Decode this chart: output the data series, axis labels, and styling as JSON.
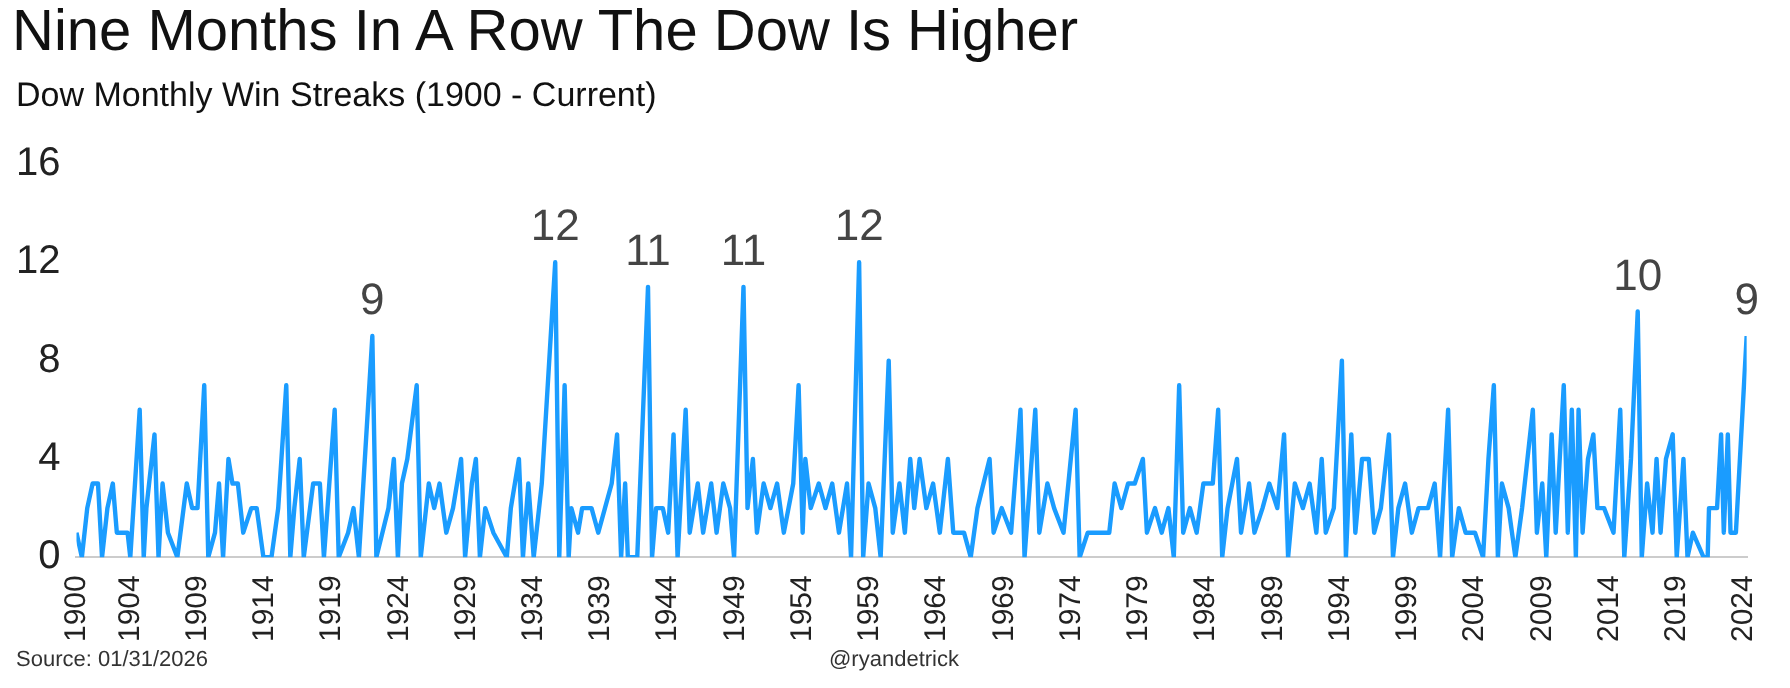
{
  "chart_data": {
    "type": "line",
    "title": "Nine Months In A Row The Dow Is Higher",
    "subtitle": "Dow Monthly Win Streaks (1900 - Current)",
    "xlim": [
      1900,
      2024.2
    ],
    "xticks": [
      1900,
      1904,
      1909,
      1914,
      1919,
      1924,
      1929,
      1934,
      1939,
      1944,
      1949,
      1954,
      1959,
      1964,
      1969,
      1974,
      1979,
      1984,
      1989,
      1994,
      1999,
      2004,
      2009,
      2014,
      2019,
      2024
    ],
    "ylim": [
      0,
      16
    ],
    "yticks": [
      0,
      4,
      8,
      12,
      16
    ],
    "grid": false,
    "legend": false,
    "marker": "none",
    "line_style": "solid",
    "series": [
      {
        "color": "#1a9cff",
        "x": [
          1900.0,
          1900.4,
          1900.8,
          1901.2,
          1901.6,
          1901.9,
          1902.3,
          1902.7,
          1903,
          1903.8,
          1904.0,
          1904.7,
          1905.0,
          1905.2,
          1905.8,
          1906.1,
          1906.4,
          1906.8,
          1907.5,
          1908.2,
          1908.6,
          1909.0,
          1909.5,
          1909.8,
          1910.3,
          1910.6,
          1910.9,
          1911.3,
          1911.6,
          1912,
          1912.4,
          1913,
          1913.4,
          1913.9,
          1914.5,
          1915.0,
          1915.6,
          1915.9,
          1916.2,
          1916.6,
          1916.9,
          1917.6,
          1918.1,
          1918.4,
          1919.2,
          1919.5,
          1920.2,
          1920.6,
          1921.0,
          1922.0,
          1922.3,
          1923.2,
          1923.6,
          1923.9,
          1924.2,
          1924.6,
          1925.3,
          1925.6,
          1926.2,
          1926.6,
          1927,
          1927.5,
          1928.0,
          1928.6,
          1928.9,
          1929.4,
          1929.7,
          1930,
          1930.4,
          1931,
          1932,
          1932.3,
          1932.9,
          1933.2,
          1933.6,
          1934.0,
          1934.6,
          1935.6,
          1935.9,
          1936.3,
          1936.6,
          1936.8,
          1937.3,
          1937.6,
          1938.3,
          1938.8,
          1939.3,
          1939.8,
          1940.2,
          1940.5,
          1940.8,
          1941.0,
          1941.7,
          1942.5,
          1942.8,
          1943.1,
          1943.6,
          1944.0,
          1944.4,
          1944.7,
          1945.3,
          1945.6,
          1946.2,
          1946.6,
          1947.2,
          1947.6,
          1948.1,
          1948.6,
          1948.9,
          1949.6,
          1949.9,
          1950.3,
          1950.6,
          1951.1,
          1951.6,
          1952.1,
          1952.6,
          1953.3,
          1953.7,
          1954.0,
          1954.2,
          1954.6,
          1955.2,
          1955.7,
          1956.2,
          1956.7,
          1957.3,
          1957.6,
          1958.2,
          1958.5,
          1958.9,
          1959.4,
          1959.8,
          1960.4,
          1960.7,
          1961.2,
          1961.6,
          1962.0,
          1962.3,
          1962.7,
          1963.2,
          1963.7,
          1964.2,
          1964.8,
          1965.2,
          1966,
          1966.5,
          1967.0,
          1967.9,
          1968.2,
          1968.8,
          1969.5,
          1970.2,
          1970.5,
          1971.3,
          1971.6,
          1972.2,
          1972.7,
          1973.4,
          1974.3,
          1974.6,
          1975.2,
          1976,
          1976.8,
          1977.2,
          1977.7,
          1978.2,
          1978.7,
          1979.3,
          1979.6,
          1980.2,
          1980.7,
          1981.2,
          1981.6,
          1982.0,
          1982.3,
          1982.8,
          1983.3,
          1983.8,
          1984.5,
          1984.9,
          1985.2,
          1985.6,
          1986.3,
          1986.6,
          1987.2,
          1987.6,
          1988.2,
          1988.7,
          1989.3,
          1989.8,
          1990.1,
          1990.6,
          1991.2,
          1991.7,
          1992.2,
          1992.6,
          1992.9,
          1993.5,
          1994.1,
          1994.4,
          1994.8,
          1995.1,
          1995.6,
          1996.1,
          1996.5,
          1997.0,
          1997.6,
          1997.9,
          1998.3,
          1998.8,
          1999.3,
          1999.8,
          2000.5,
          2001,
          2001.4,
          2002.0,
          2002.3,
          2002.8,
          2003.3,
          2004,
          2004.6,
          2005.0,
          2005.4,
          2005.7,
          2006.0,
          2006.5,
          2007,
          2007.5,
          2008.3,
          2008.6,
          2009.0,
          2009.3,
          2009.7,
          2010.0,
          2010.6,
          2010.9,
          2011.2,
          2011.5,
          2011.7,
          2012.0,
          2012.4,
          2012.8,
          2013.1,
          2013.6,
          2014.3,
          2014.8,
          2015.1,
          2015.6,
          2016.1,
          2016.4,
          2016.8,
          2017.2,
          2017.5,
          2017.8,
          2018.2,
          2018.7,
          2019.0,
          2019.5,
          2019.8,
          2020.2,
          2021.0,
          2021.3,
          2021.4,
          2022.0,
          2022.3,
          2022.5,
          2022.8,
          2023.0,
          2023.4,
          2024.2
        ],
        "values": [
          1,
          0,
          2,
          3,
          3,
          0,
          2,
          3,
          1,
          1,
          0,
          6,
          0,
          2,
          5,
          0,
          3,
          1,
          0,
          3,
          2,
          2,
          7,
          0,
          1,
          3,
          0,
          4,
          3,
          3,
          1,
          2,
          2,
          0,
          0,
          2,
          7,
          0,
          2,
          4,
          0,
          3,
          3,
          0,
          6,
          0,
          1,
          2,
          0,
          9,
          0,
          2,
          4,
          0,
          3,
          4,
          7,
          0,
          3,
          2,
          3,
          1,
          2,
          4,
          0,
          3,
          4,
          0,
          2,
          1,
          0,
          2,
          4,
          0,
          3,
          0,
          3,
          12,
          0,
          7,
          0,
          2,
          1,
          2,
          2,
          1,
          2,
          3,
          5,
          0,
          3,
          0,
          0,
          11,
          0,
          2,
          2,
          1,
          5,
          0,
          6,
          1,
          3,
          1,
          3,
          1,
          3,
          2,
          0,
          11,
          2,
          4,
          1,
          3,
          2,
          3,
          1,
          3,
          7,
          1,
          4,
          2,
          3,
          2,
          3,
          1,
          3,
          0,
          12,
          0,
          3,
          2,
          0,
          8,
          1,
          3,
          1,
          4,
          2,
          4,
          2,
          3,
          1,
          4,
          1,
          1,
          0,
          2,
          4,
          1,
          2,
          1,
          6,
          0,
          6,
          1,
          3,
          2,
          1,
          6,
          0,
          1,
          1,
          1,
          3,
          2,
          3,
          3,
          4,
          1,
          2,
          1,
          2,
          0,
          7,
          1,
          2,
          1,
          3,
          3,
          6,
          0,
          2,
          4,
          1,
          3,
          1,
          2,
          3,
          2,
          5,
          0,
          3,
          2,
          3,
          1,
          4,
          1,
          2,
          8,
          0,
          5,
          1,
          4,
          4,
          1,
          2,
          5,
          0,
          2,
          3,
          1,
          2,
          2,
          3,
          0,
          6,
          0,
          2,
          1,
          1,
          0,
          4,
          7,
          0,
          3,
          2,
          0,
          2,
          6,
          1,
          3,
          0,
          5,
          1,
          7,
          1,
          6,
          0,
          6,
          1,
          4,
          5,
          2,
          2,
          1,
          6,
          0,
          4,
          10,
          0,
          3,
          1,
          4,
          1,
          4,
          5,
          0,
          4,
          0,
          1,
          0,
          0,
          2,
          2,
          5,
          1,
          5,
          1,
          1,
          9
        ]
      }
    ],
    "annotations": [
      {
        "text": "9",
        "x": 1922.0,
        "y": 9
      },
      {
        "text": "12",
        "x": 1935.6,
        "y": 12
      },
      {
        "text": "11",
        "x": 1942.5,
        "y": 11
      },
      {
        "text": "11",
        "x": 1949.6,
        "y": 11
      },
      {
        "text": "12",
        "x": 1958.2,
        "y": 12
      },
      {
        "text": "10",
        "x": 2016.1,
        "y": 10
      },
      {
        "text": "9",
        "x": 2024.2,
        "y": 9
      },
      "Source: 01/31/2026",
      "@ryandetrick"
    ]
  }
}
